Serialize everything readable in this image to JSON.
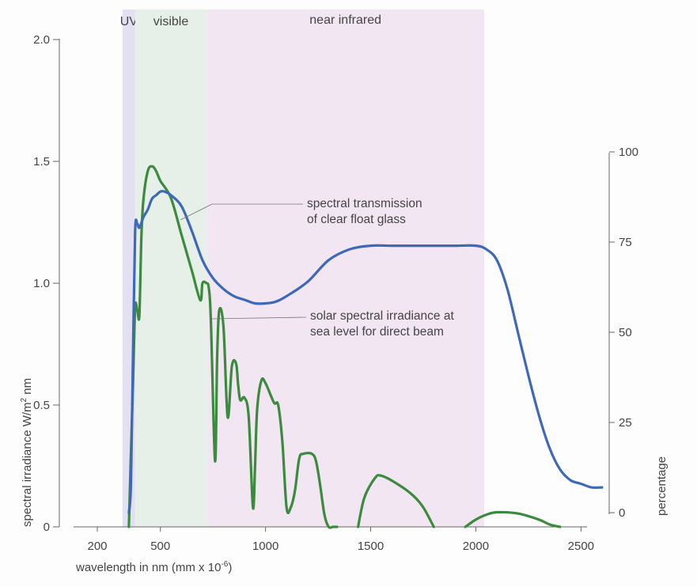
{
  "chart_data": {
    "type": "line",
    "xlabel": "wavelength in nm (mm x 10",
    "xlabel_sup": "-6",
    "xlabel_close": ")",
    "ylabel_left": "spectral irradiance W/m",
    "ylabel_left_sup": "2",
    "ylabel_left_tail": " nm",
    "ylabel_right": "percentage",
    "xlim": [
      200,
      2600
    ],
    "ylim_left": [
      0,
      2.0
    ],
    "ylim_right": [
      0,
      100
    ],
    "x_ticks": [
      "200",
      "500",
      "1000",
      "1500",
      "2000",
      "2500"
    ],
    "x_tick_values": [
      200,
      500,
      1000,
      1500,
      2000,
      2500
    ],
    "y_ticks_left": [
      "0",
      "0.5",
      "1.0",
      "1.5",
      "2.0"
    ],
    "y_tick_values_left": [
      0,
      0.5,
      1.0,
      1.5,
      2.0
    ],
    "y_ticks_right": [
      "0",
      "25",
      "50",
      "75",
      "100"
    ],
    "y_tick_values_right": [
      0,
      25,
      50,
      75,
      100
    ],
    "grid": false,
    "bands": [
      {
        "label": "UV",
        "x": [
          320,
          380
        ],
        "color": "#e3e1f1"
      },
      {
        "label": "visible",
        "x": [
          380,
          720
        ],
        "color": "#e6efe8"
      },
      {
        "label": "near infrared",
        "x": [
          720,
          2040
        ],
        "color": "#f1e6f1"
      }
    ],
    "series": [
      {
        "name": "spectral transmission of clear float glass",
        "axis": "right",
        "color": "#3e68b8",
        "x": [
          350,
          360,
          370,
          380,
          390,
          400,
          420,
          440,
          460,
          480,
          500,
          520,
          550,
          600,
          650,
          700,
          750,
          800,
          850,
          900,
          950,
          1000,
          1050,
          1100,
          1200,
          1300,
          1400,
          1500,
          1600,
          1700,
          1800,
          1900,
          2000,
          2050,
          2100,
          2150,
          2200,
          2250,
          2300,
          2350,
          2400,
          2450,
          2500,
          2550,
          2600
        ],
        "y": [
          0,
          8,
          45,
          78,
          80,
          79,
          82,
          84,
          87,
          88,
          89,
          89,
          88,
          85,
          78,
          70,
          65,
          62,
          60,
          59,
          58,
          58,
          58.5,
          60,
          64,
          70,
          73,
          74,
          74,
          74,
          74,
          74,
          74,
          73,
          70,
          62,
          50,
          38,
          27,
          18,
          12,
          9,
          8,
          7,
          7
        ]
      },
      {
        "name": "solar spectral irradiance at sea level for direct beam",
        "axis": "left",
        "color": "#3b8a3e",
        "segments": [
          {
            "x": [
              350,
              360,
              370,
              380,
              390,
              400,
              410,
              420,
              440,
              460,
              480,
              500,
              550,
              600,
              650,
              690,
              700,
              720,
              730,
              740,
              760,
              770,
              780,
              800,
              820,
              840,
              860,
              870,
              880,
              900,
              920,
              940,
              950,
              960,
              980,
              1000,
              1040,
              1060,
              1080,
              1100,
              1120,
              1140,
              1160,
              1180,
              1220,
              1240,
              1260,
              1280,
              1300,
              1320,
              1340
            ],
            "y": [
              0,
              0.3,
              0.6,
              0.9,
              0.89,
              0.87,
              1.2,
              1.35,
              1.46,
              1.48,
              1.46,
              1.42,
              1.35,
              1.2,
              1.05,
              0.93,
              1.0,
              1.0,
              0.98,
              0.85,
              0.27,
              0.7,
              0.89,
              0.82,
              0.45,
              0.66,
              0.67,
              0.58,
              0.52,
              0.53,
              0.45,
              0.08,
              0.25,
              0.48,
              0.6,
              0.59,
              0.51,
              0.5,
              0.35,
              0.08,
              0.08,
              0.15,
              0.28,
              0.3,
              0.3,
              0.27,
              0.17,
              0.05,
              0.0,
              0.0,
              0.0
            ]
          },
          {
            "x": [
              1440,
              1470,
              1520,
              1550,
              1620,
              1700,
              1750,
              1800
            ],
            "y": [
              0.0,
              0.12,
              0.2,
              0.21,
              0.18,
              0.13,
              0.08,
              0.0
            ]
          },
          {
            "x": [
              1950,
              2000,
              2050,
              2100,
              2200,
              2300,
              2350,
              2400
            ],
            "y": [
              0.0,
              0.03,
              0.05,
              0.06,
              0.055,
              0.03,
              0.01,
              0.0
            ]
          }
        ]
      }
    ],
    "annotations": [
      {
        "lines": [
          "spectral transmission",
          "of clear float glass"
        ],
        "target_series": 0
      },
      {
        "lines": [
          "solar spectral irradiance at",
          "sea level for direct beam"
        ],
        "target_series": 1
      }
    ]
  }
}
